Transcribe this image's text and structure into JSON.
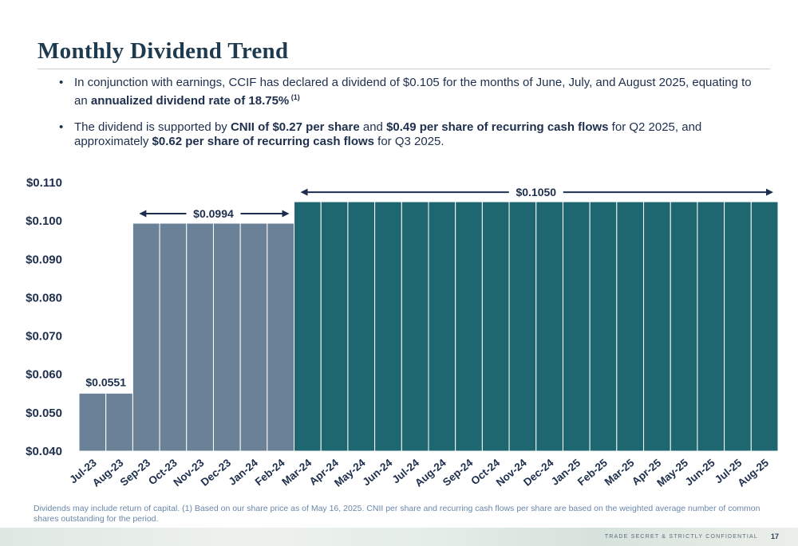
{
  "page": {
    "title": "Monthly Dividend Trend",
    "bullets": [
      {
        "parts": [
          {
            "text": "In conjunction with earnings, CCIF has declared a dividend of $0.105 for the months of June, July, and August 2025, equating to an ",
            "bold": false
          },
          {
            "text": "annualized dividend rate of 18.75%",
            "bold": true
          },
          {
            "text": " (1)",
            "bold": true,
            "sup": true
          }
        ]
      },
      {
        "parts": [
          {
            "text": "The dividend is supported by ",
            "bold": false
          },
          {
            "text": "CNII of $0.27 per share",
            "bold": true
          },
          {
            "text": " and  ",
            "bold": false
          },
          {
            "text": "$0.49 per share of recurring cash flows",
            "bold": true
          },
          {
            "text": " for Q2 2025, and approximately ",
            "bold": false
          },
          {
            "text": "$0.62 per share of recurring cash flows",
            "bold": true
          },
          {
            "text": " for Q3 2025.",
            "bold": false
          }
        ]
      }
    ],
    "bullet_char": "•",
    "footnote": "Dividends may include return of capital. (1) Based on our share price as of May 16, 2025. CNII per share and recurring cash flows per share are based on the weighted average number of common shares outstanding for the period.",
    "confidential": "TRADE SECRET & STRICTLY CONFIDENTIAL",
    "page_number": "17"
  },
  "chart_data": {
    "type": "bar",
    "categories": [
      "Jul-23",
      "Aug-23",
      "Sep-23",
      "Oct-23",
      "Nov-23",
      "Dec-23",
      "Jan-24",
      "Feb-24",
      "Mar-24",
      "Apr-24",
      "May-24",
      "Jun-24",
      "Jul-24",
      "Aug-24",
      "Sep-24",
      "Oct-24",
      "Nov-24",
      "Dec-24",
      "Jan-25",
      "Feb-25",
      "Mar-25",
      "Apr-25",
      "May-25",
      "Jun-25",
      "Jul-25",
      "Aug-25"
    ],
    "values": [
      0.0551,
      0.0551,
      0.0994,
      0.0994,
      0.0994,
      0.0994,
      0.0994,
      0.0994,
      0.105,
      0.105,
      0.105,
      0.105,
      0.105,
      0.105,
      0.105,
      0.105,
      0.105,
      0.105,
      0.105,
      0.105,
      0.105,
      0.105,
      0.105,
      0.105,
      0.105,
      0.105
    ],
    "ylim": [
      0.04,
      0.11
    ],
    "yticks": [
      "$0.110",
      "$0.100",
      "$0.090",
      "$0.080",
      "$0.070",
      "$0.060",
      "$0.050",
      "$0.040"
    ],
    "ytick_values": [
      0.11,
      0.1,
      0.09,
      0.08,
      0.07,
      0.06,
      0.05,
      0.04
    ],
    "colors": {
      "early": "#6b8197",
      "late": "#1f6770",
      "text": "#1e2f4d",
      "edge": "#ffffff"
    },
    "groups": [
      {
        "label": "$0.0551",
        "start": 0,
        "end": 1,
        "color": "early",
        "arrow": false
      },
      {
        "label": "$0.0994",
        "start": 2,
        "end": 7,
        "color": "early",
        "arrow": true
      },
      {
        "label": "$0.1050",
        "start": 8,
        "end": 25,
        "color": "late",
        "arrow": true
      }
    ],
    "grid": false,
    "legend": "none"
  }
}
